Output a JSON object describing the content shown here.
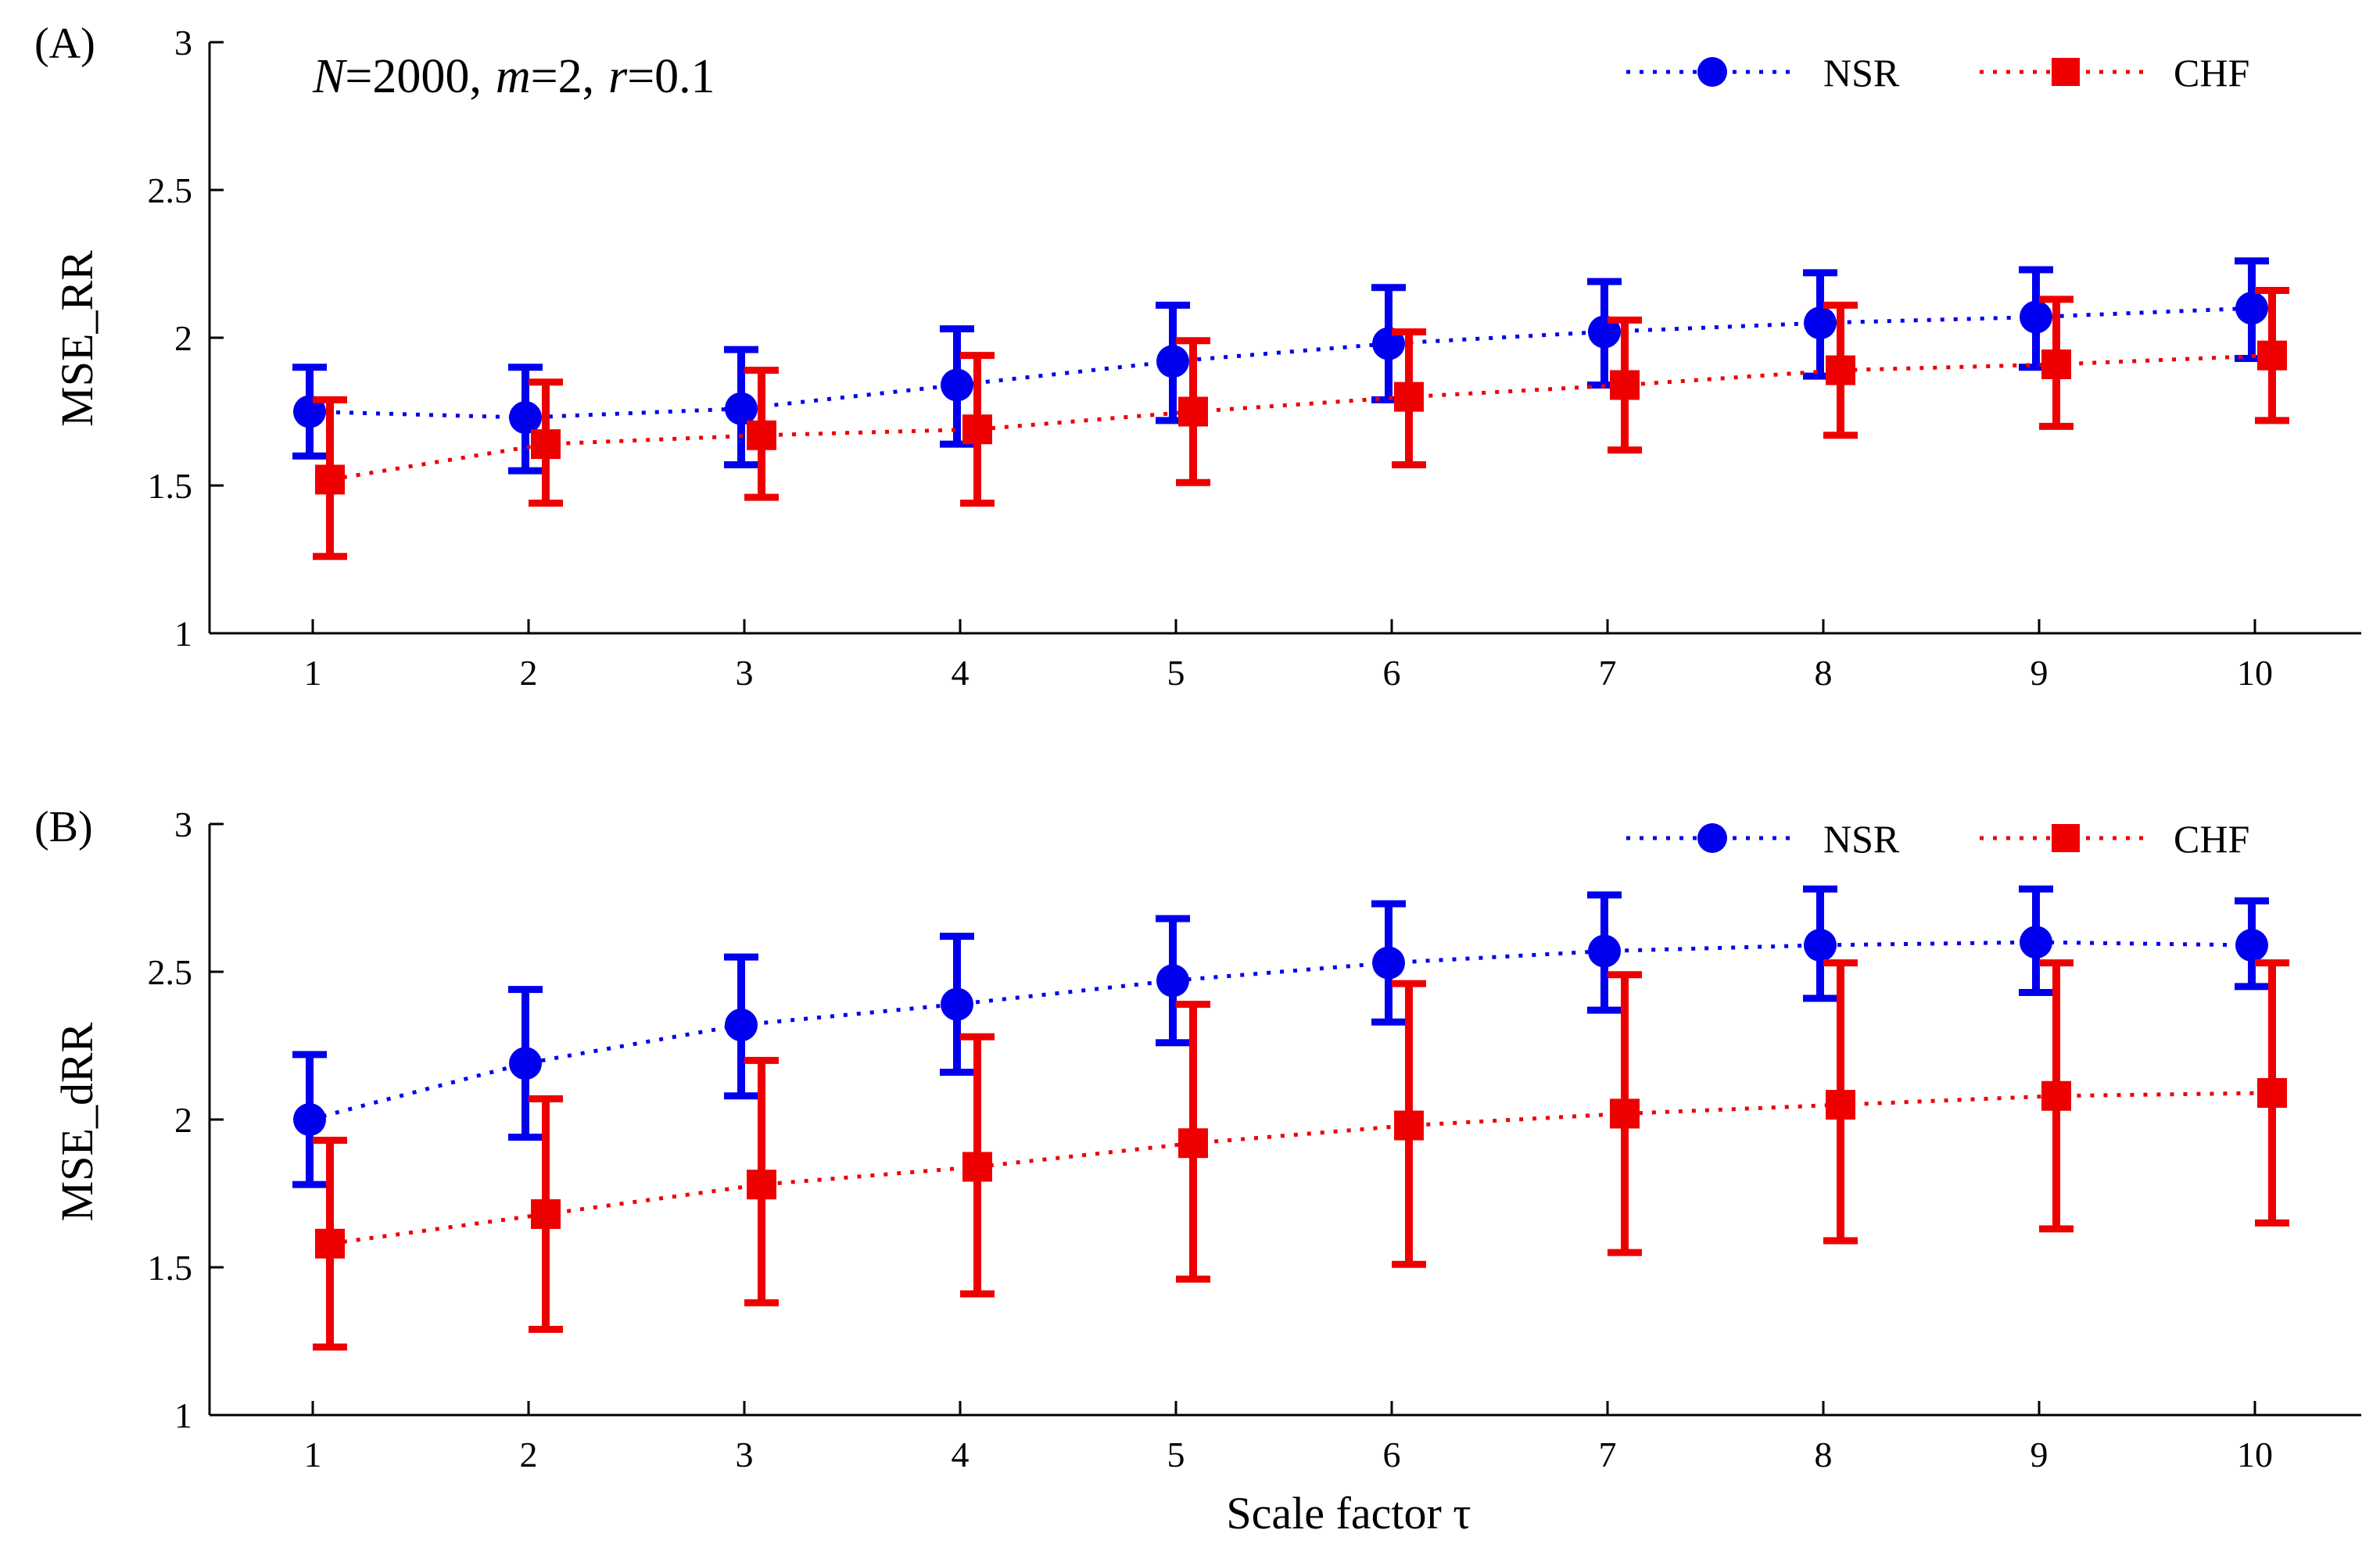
{
  "figure": {
    "xlabel": "Scale factor τ",
    "colors": {
      "NSR": "#0000ee",
      "CHF": "#ee0000",
      "axis": "#000000"
    }
  },
  "chart_data": [
    {
      "type": "line",
      "panel_label": "(A)",
      "annotation": {
        "N_symbol": "N",
        "N_value": "=2000,",
        "m_symbol": "m",
        "m_value": "=2,",
        "r_symbol": "r",
        "r_value": "=0.1"
      },
      "xlabel": "",
      "ylabel": "MSE_RR",
      "ylim": [
        1,
        3
      ],
      "yticks": [
        1,
        1.5,
        2,
        2.5,
        3
      ],
      "ytick_labels": [
        "1",
        "1.5",
        "2",
        "2.5",
        "3"
      ],
      "x": [
        1,
        2,
        3,
        4,
        5,
        6,
        7,
        8,
        9,
        10
      ],
      "xtick_labels": [
        "1",
        "2",
        "3",
        "4",
        "5",
        "6",
        "7",
        "8",
        "9",
        "10"
      ],
      "legend_position": "top-right",
      "legend": [
        "NSR",
        "CHF"
      ],
      "series": [
        {
          "name": "NSR",
          "marker": "circle",
          "line": "dotted",
          "values": [
            1.75,
            1.73,
            1.76,
            1.84,
            1.92,
            1.98,
            2.02,
            2.05,
            2.07,
            2.1
          ],
          "err_low": [
            1.6,
            1.55,
            1.57,
            1.64,
            1.72,
            1.79,
            1.84,
            1.87,
            1.9,
            1.93
          ],
          "err_high": [
            1.9,
            1.9,
            1.96,
            2.03,
            2.11,
            2.17,
            2.19,
            2.22,
            2.23,
            2.26
          ]
        },
        {
          "name": "CHF",
          "marker": "square",
          "line": "dotted",
          "values": [
            1.52,
            1.64,
            1.67,
            1.69,
            1.75,
            1.8,
            1.84,
            1.89,
            1.91,
            1.94
          ],
          "err_low": [
            1.26,
            1.44,
            1.46,
            1.44,
            1.51,
            1.57,
            1.62,
            1.67,
            1.7,
            1.72
          ],
          "err_high": [
            1.79,
            1.85,
            1.89,
            1.94,
            1.99,
            2.02,
            2.06,
            2.11,
            2.13,
            2.16
          ]
        }
      ]
    },
    {
      "type": "line",
      "panel_label": "(B)",
      "xlabel": "Scale factor τ",
      "ylabel": "MSE_dRR",
      "ylim": [
        1,
        3
      ],
      "yticks": [
        1,
        1.5,
        2,
        2.5,
        3
      ],
      "ytick_labels": [
        "1",
        "1.5",
        "2",
        "2.5",
        "3"
      ],
      "x": [
        1,
        2,
        3,
        4,
        5,
        6,
        7,
        8,
        9,
        10
      ],
      "xtick_labels": [
        "1",
        "2",
        "3",
        "4",
        "5",
        "6",
        "7",
        "8",
        "9",
        "10"
      ],
      "legend_position": "top-right",
      "legend": [
        "NSR",
        "CHF"
      ],
      "series": [
        {
          "name": "NSR",
          "marker": "circle",
          "line": "dotted",
          "values": [
            2.0,
            2.19,
            2.32,
            2.39,
            2.47,
            2.53,
            2.57,
            2.59,
            2.6,
            2.59
          ],
          "err_low": [
            1.78,
            1.94,
            2.08,
            2.16,
            2.26,
            2.33,
            2.37,
            2.41,
            2.43,
            2.45
          ],
          "err_high": [
            2.22,
            2.44,
            2.55,
            2.62,
            2.68,
            2.73,
            2.76,
            2.78,
            2.78,
            2.74
          ]
        },
        {
          "name": "CHF",
          "marker": "square",
          "line": "dotted",
          "values": [
            1.58,
            1.68,
            1.78,
            1.84,
            1.92,
            1.98,
            2.02,
            2.05,
            2.08,
            2.09
          ],
          "err_low": [
            1.23,
            1.29,
            1.38,
            1.41,
            1.46,
            1.51,
            1.55,
            1.59,
            1.63,
            1.65
          ],
          "err_high": [
            1.93,
            2.07,
            2.2,
            2.28,
            2.39,
            2.46,
            2.49,
            2.53,
            2.53,
            2.53
          ]
        }
      ]
    }
  ]
}
